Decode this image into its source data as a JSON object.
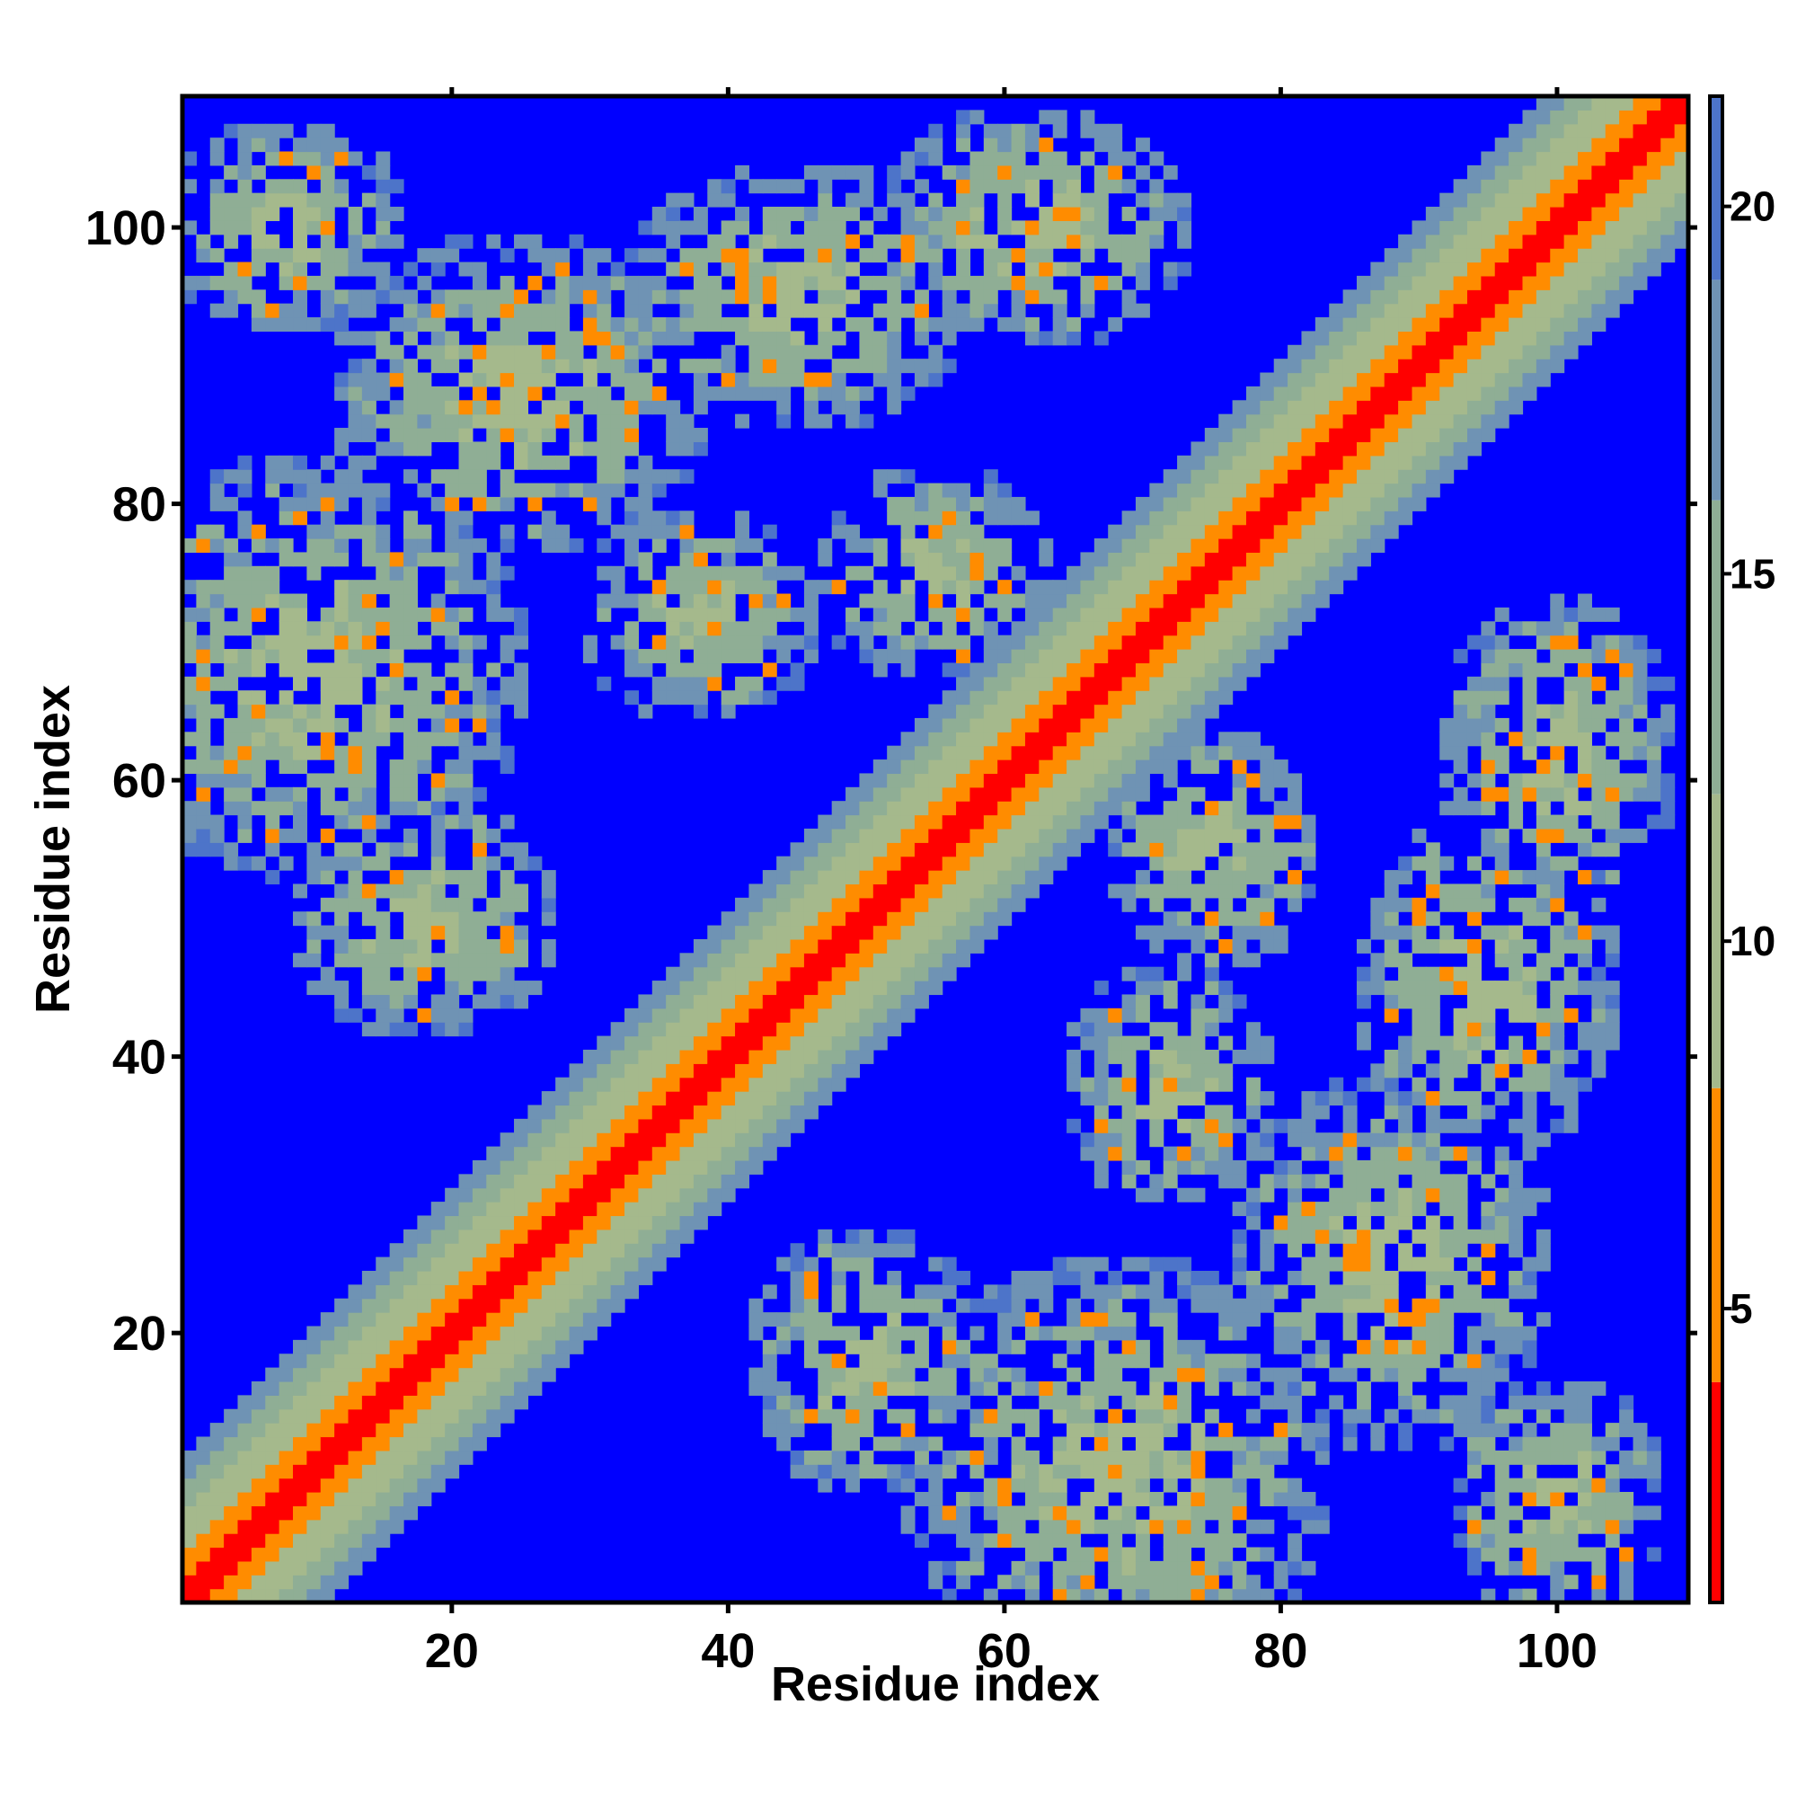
{
  "chart_data": {
    "type": "heatmap",
    "title": "",
    "xlabel": "Residue index",
    "ylabel": "Residue index",
    "n_residues": 109,
    "xlim": [
      1,
      109
    ],
    "ylim": [
      1,
      109
    ],
    "x_ticks": [
      20,
      40,
      60,
      80,
      100
    ],
    "y_ticks": [
      20,
      40,
      60,
      80,
      100
    ],
    "x_tick_labels": [
      "20",
      "40",
      "60",
      "80",
      "100"
    ],
    "y_tick_labels": [
      "20",
      "40",
      "60",
      "80",
      "100"
    ],
    "colorbar": {
      "range": [
        1,
        21.5
      ],
      "ticks": [
        5,
        10,
        15,
        20
      ],
      "tick_labels": [
        "5",
        "10",
        "15",
        "20"
      ],
      "segments": [
        {
          "from": 1,
          "to": 4,
          "color": "#ff0000"
        },
        {
          "from": 4,
          "to": 8,
          "color": "#ff8c00"
        },
        {
          "from": 8,
          "to": 12,
          "color": "#a5b98c"
        },
        {
          "from": 12,
          "to": 16,
          "color": "#8fae95"
        },
        {
          "from": 16,
          "to": 19,
          "color": "#6f93b4"
        },
        {
          "from": 19,
          "to": 21.5,
          "color": "#4d74c9"
        }
      ]
    },
    "value_description": "Pairwise residue distance map (symmetric); values beyond 21 shown as background",
    "background_color": "#0000ff",
    "diagonal_band": [
      {
        "max_offset": 1,
        "value": 2
      },
      {
        "max_offset": 3,
        "value": 5
      },
      {
        "max_offset": 6,
        "value": 9
      },
      {
        "max_offset": 8,
        "value": 13
      },
      {
        "max_offset": 10,
        "value": 17
      }
    ],
    "contact_blobs": [
      {
        "x": 10,
        "y": 68,
        "rx": 16,
        "ry": 16
      },
      {
        "x": 25,
        "y": 88,
        "rx": 14,
        "ry": 12
      },
      {
        "x": 45,
        "y": 95,
        "rx": 13,
        "ry": 10
      },
      {
        "x": 62,
        "y": 100,
        "rx": 12,
        "ry": 9
      },
      {
        "x": 8,
        "y": 100,
        "rx": 9,
        "ry": 8
      },
      {
        "x": 38,
        "y": 72,
        "rx": 9,
        "ry": 8
      },
      {
        "x": 18,
        "y": 50,
        "rx": 10,
        "ry": 9
      },
      {
        "x": 55,
        "y": 75,
        "rx": 9,
        "ry": 8
      },
      {
        "x": 68,
        "y": 10,
        "rx": 16,
        "ry": 16
      },
      {
        "x": 88,
        "y": 25,
        "rx": 12,
        "ry": 14
      },
      {
        "x": 95,
        "y": 45,
        "rx": 10,
        "ry": 13
      },
      {
        "x": 100,
        "y": 62,
        "rx": 9,
        "ry": 12
      },
      {
        "x": 100,
        "y": 8,
        "rx": 8,
        "ry": 9
      },
      {
        "x": 72,
        "y": 38,
        "rx": 8,
        "ry": 9
      },
      {
        "x": 50,
        "y": 18,
        "rx": 9,
        "ry": 10
      },
      {
        "x": 75,
        "y": 55,
        "rx": 8,
        "ry": 9
      }
    ],
    "grid": false,
    "legend": "colorbar-right"
  }
}
